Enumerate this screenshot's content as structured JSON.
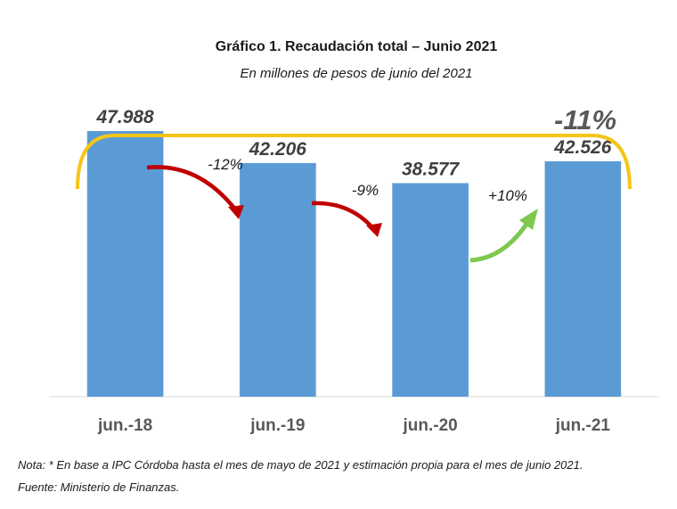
{
  "chart_data": {
    "type": "bar",
    "title": "Gráfico 1. Recaudación total – Junio 2021",
    "subtitle": "En millones de pesos de junio del 2021",
    "categories": [
      "jun.-18",
      "jun.-19",
      "jun.-20",
      "jun.-21"
    ],
    "values": [
      47988,
      42206,
      38577,
      42526
    ],
    "value_labels": [
      "47.988",
      "42.206",
      "38.577",
      "42.526"
    ],
    "ylim": [
      0,
      62000
    ],
    "grid": false,
    "bar_color": "#5b9bd5",
    "annotations": {
      "changes": [
        {
          "from": "jun.-18",
          "to": "jun.-19",
          "label": "-12%",
          "color": "#c00000"
        },
        {
          "from": "jun.-19",
          "to": "jun.-20",
          "label": "-9%",
          "color": "#c00000"
        },
        {
          "from": "jun.-20",
          "to": "jun.-21",
          "label": "+10%",
          "color": "#7ec850"
        }
      ],
      "overall": {
        "label": "-11%",
        "color": "#f5c518"
      }
    }
  },
  "notes": {
    "nota": "Nota: * En base a IPC Córdoba hasta el mes de mayo de 2021 y estimación propia para el mes de junio 2021.",
    "fuente": "Fuente: Ministerio de Finanzas."
  }
}
